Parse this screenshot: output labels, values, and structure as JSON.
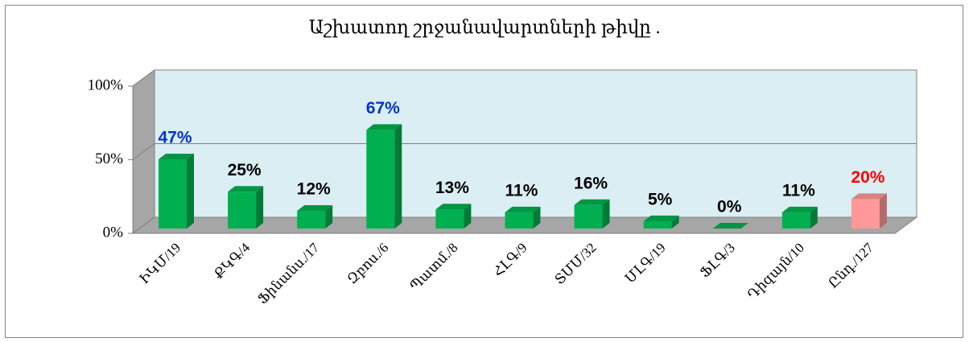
{
  "chart_data": {
    "type": "bar3d",
    "title": "Աշխատող շրջանավարտների թիվը .",
    "categories": [
      "ԻԿՄ/19",
      "ՔԿԳ/4",
      "Ֆինանս./17",
      "Զբոս./6",
      "Պատմ./8",
      "ՀԼԳ/9",
      "ՏՄՄ/32",
      "ՄԼԳ/19",
      "ՖԼԳ/3",
      "Դիզայն/10",
      "Ընդ./127"
    ],
    "values": [
      47,
      25,
      12,
      67,
      13,
      11,
      16,
      5,
      0,
      11,
      20
    ],
    "value_labels": [
      "47%",
      "25%",
      "12%",
      "67%",
      "13%",
      "11%",
      "16%",
      "5%",
      "0%",
      "11%",
      "20%"
    ],
    "colors": [
      "#00b050",
      "#00b050",
      "#00b050",
      "#00b050",
      "#00b050",
      "#00b050",
      "#00b050",
      "#00b050",
      "#00b050",
      "#00b050",
      "#ff9999"
    ],
    "label_colors": [
      "#0033cc",
      "#000000",
      "#000000",
      "#0033cc",
      "#000000",
      "#000000",
      "#000000",
      "#000000",
      "#000000",
      "#000000",
      "#ff0000"
    ],
    "ylim": [
      0,
      100
    ],
    "yticks": [
      {
        "value": 0,
        "label": "0%"
      },
      {
        "value": 50,
        "label": "50%"
      },
      {
        "value": 100,
        "label": "100%"
      }
    ],
    "grid": true
  }
}
